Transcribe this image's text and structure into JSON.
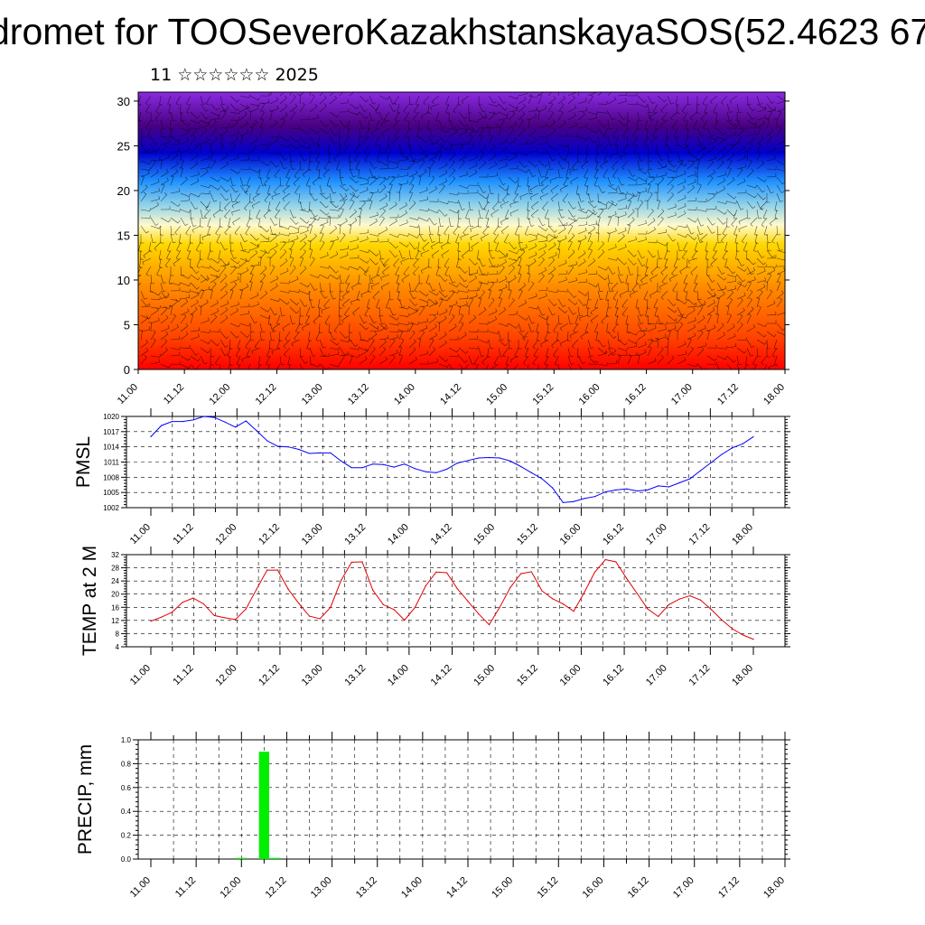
{
  "title": "dromet for TOOSeveroKazakhstanskayaSOS(52.4623 67",
  "subtitle": "11 ☆☆☆☆☆☆ 2025",
  "colors": {
    "pmsl_line": "#0000ff",
    "temp_line": "#e00000",
    "precip_bar": "#00ee00",
    "contour_fill_stops": [
      "#ff0000",
      "#ff4500",
      "#ff8c00",
      "#ffd700",
      "#fffacd",
      "#87ceeb",
      "#1e90ff",
      "#0000cd",
      "#4b0082",
      "#8a2be2"
    ]
  },
  "chart_data": [
    {
      "type": "heatmap",
      "title": "",
      "xlabel": "",
      "ylabel": "",
      "x_tick_labels": [
        "11.00",
        "11.12",
        "12.00",
        "12.12",
        "13.00",
        "13.12",
        "14.00",
        "14.12",
        "15.00",
        "15.12",
        "16.00",
        "16.12",
        "17.00",
        "17.12",
        "18.00"
      ],
      "y_tick_labels": [
        "0",
        "5",
        "10",
        "15",
        "20",
        "25",
        "30"
      ],
      "ylim": [
        0,
        31
      ],
      "color_scale": "warm at low levels (red/orange/yellow) transitioning to cool (light blue, blue, purple) above level 15",
      "overlay": "wind barbs",
      "grid": false
    },
    {
      "type": "line",
      "ylabel": "PMSL",
      "x_tick_labels": [
        "11.00",
        "11.12",
        "12.00",
        "12.12",
        "13.00",
        "13.12",
        "14.00",
        "14.12",
        "15.00",
        "15.12",
        "16.00",
        "16.12",
        "17.00",
        "17.12",
        "18.00"
      ],
      "y_tick_labels": [
        "1002",
        "1005",
        "1008",
        "1011",
        "1014",
        "1017",
        "1020"
      ],
      "ylim": [
        1002,
        1020
      ],
      "grid": true,
      "series": [
        {
          "values": [
            1016,
            1018.2,
            1019,
            1019,
            1019.3,
            1020,
            1019.8,
            1018.9,
            1017.9,
            1019.1,
            1017.2,
            1015.2,
            1014.1,
            1014,
            1013.5,
            1012.7,
            1012.8,
            1012.8,
            1011.2,
            1009.9,
            1009.9,
            1010.6,
            1010.5,
            1010,
            1010.6,
            1009.7,
            1009.1,
            1008.9,
            1009.6,
            1010.8,
            1011.3,
            1011.8,
            1011.9,
            1011.8,
            1011.2,
            1010.1,
            1008.9,
            1007.7,
            1005.9,
            1003,
            1003.2,
            1003.8,
            1004.2,
            1005.1,
            1005.5,
            1005.7,
            1005.3,
            1005.5,
            1006.3,
            1006.1,
            1006.9,
            1007.7,
            1009.3,
            1010.9,
            1012.5,
            1013.8,
            1014.6,
            1016
          ]
        }
      ]
    },
    {
      "type": "line",
      "ylabel": "TEMP at 2 M",
      "x_tick_labels": [
        "11.00",
        "11.12",
        "12.00",
        "12.12",
        "13.00",
        "13.12",
        "14.00",
        "14.12",
        "15.00",
        "15.12",
        "16.00",
        "16.12",
        "17.00",
        "17.12",
        "18.00"
      ],
      "y_tick_labels": [
        "4",
        "8",
        "12",
        "16",
        "20",
        "24",
        "28",
        "32"
      ],
      "ylim": [
        4,
        32
      ],
      "grid": true,
      "series": [
        {
          "values": [
            11.8,
            13,
            14.5,
            17.5,
            18.8,
            17,
            13.5,
            12.8,
            12.3,
            15.5,
            21.5,
            27.3,
            27.3,
            21.5,
            17.2,
            13.3,
            12.5,
            16,
            24.2,
            29.7,
            29.8,
            21.2,
            16.8,
            15.3,
            12.1,
            16,
            22.5,
            26.7,
            26.5,
            21.6,
            17.8,
            14,
            10.7,
            16,
            22,
            26.2,
            26.8,
            21,
            18.6,
            17,
            14.8,
            20.5,
            26.7,
            30.5,
            29.8,
            24.8,
            20.2,
            15.5,
            13.2,
            16.8,
            18.5,
            19.5,
            18.2,
            15.4,
            12.2,
            9.5,
            7.6,
            6.3
          ]
        }
      ]
    },
    {
      "type": "bar",
      "ylabel": "PRECIP, mm",
      "x_tick_labels": [
        "11.00",
        "11.12",
        "12.00",
        "12.12",
        "13.00",
        "13.12",
        "14.00",
        "14.12",
        "15.00",
        "15.12",
        "16.00",
        "16.12",
        "17.00",
        "17.12",
        "18.00"
      ],
      "y_tick_labels": [
        "0.0",
        "0.2",
        "0.4",
        "0.6",
        "0.8",
        "1.0"
      ],
      "ylim": [
        0,
        1
      ],
      "grid": true,
      "values": [
        0,
        0,
        0,
        0,
        0,
        0,
        0,
        0,
        0.01,
        0,
        0.9,
        0.01,
        0,
        0,
        0,
        0,
        0,
        0,
        0,
        0,
        0,
        0,
        0,
        0,
        0,
        0,
        0,
        0,
        0,
        0,
        0,
        0,
        0,
        0,
        0,
        0,
        0,
        0,
        0,
        0,
        0,
        0,
        0,
        0,
        0,
        0,
        0,
        0,
        0,
        0,
        0,
        0,
        0,
        0,
        0,
        0,
        0
      ]
    }
  ]
}
